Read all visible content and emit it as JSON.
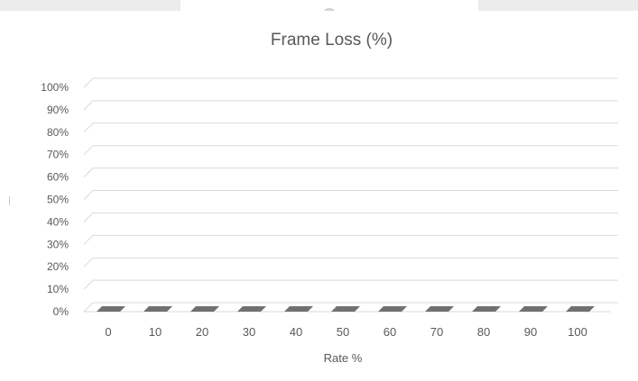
{
  "chart_data": {
    "type": "bar",
    "title": "Frame Loss (%)",
    "xlabel": "Rate %",
    "ylabel": "",
    "categories": [
      "0",
      "10",
      "20",
      "30",
      "40",
      "50",
      "60",
      "70",
      "80",
      "90",
      "100"
    ],
    "values": [
      0,
      0,
      0,
      0,
      0,
      0,
      0,
      0,
      0,
      0,
      0
    ],
    "ylim": [
      0,
      100
    ],
    "y_ticks": [
      "0%",
      "10%",
      "20%",
      "30%",
      "40%",
      "50%",
      "60%",
      "70%",
      "80%",
      "90%",
      "100%"
    ],
    "grid": true,
    "legend": "none",
    "three_d": true,
    "colors": {
      "bar": "#707070",
      "grid": "#d9d9d9",
      "text": "#595959"
    }
  }
}
